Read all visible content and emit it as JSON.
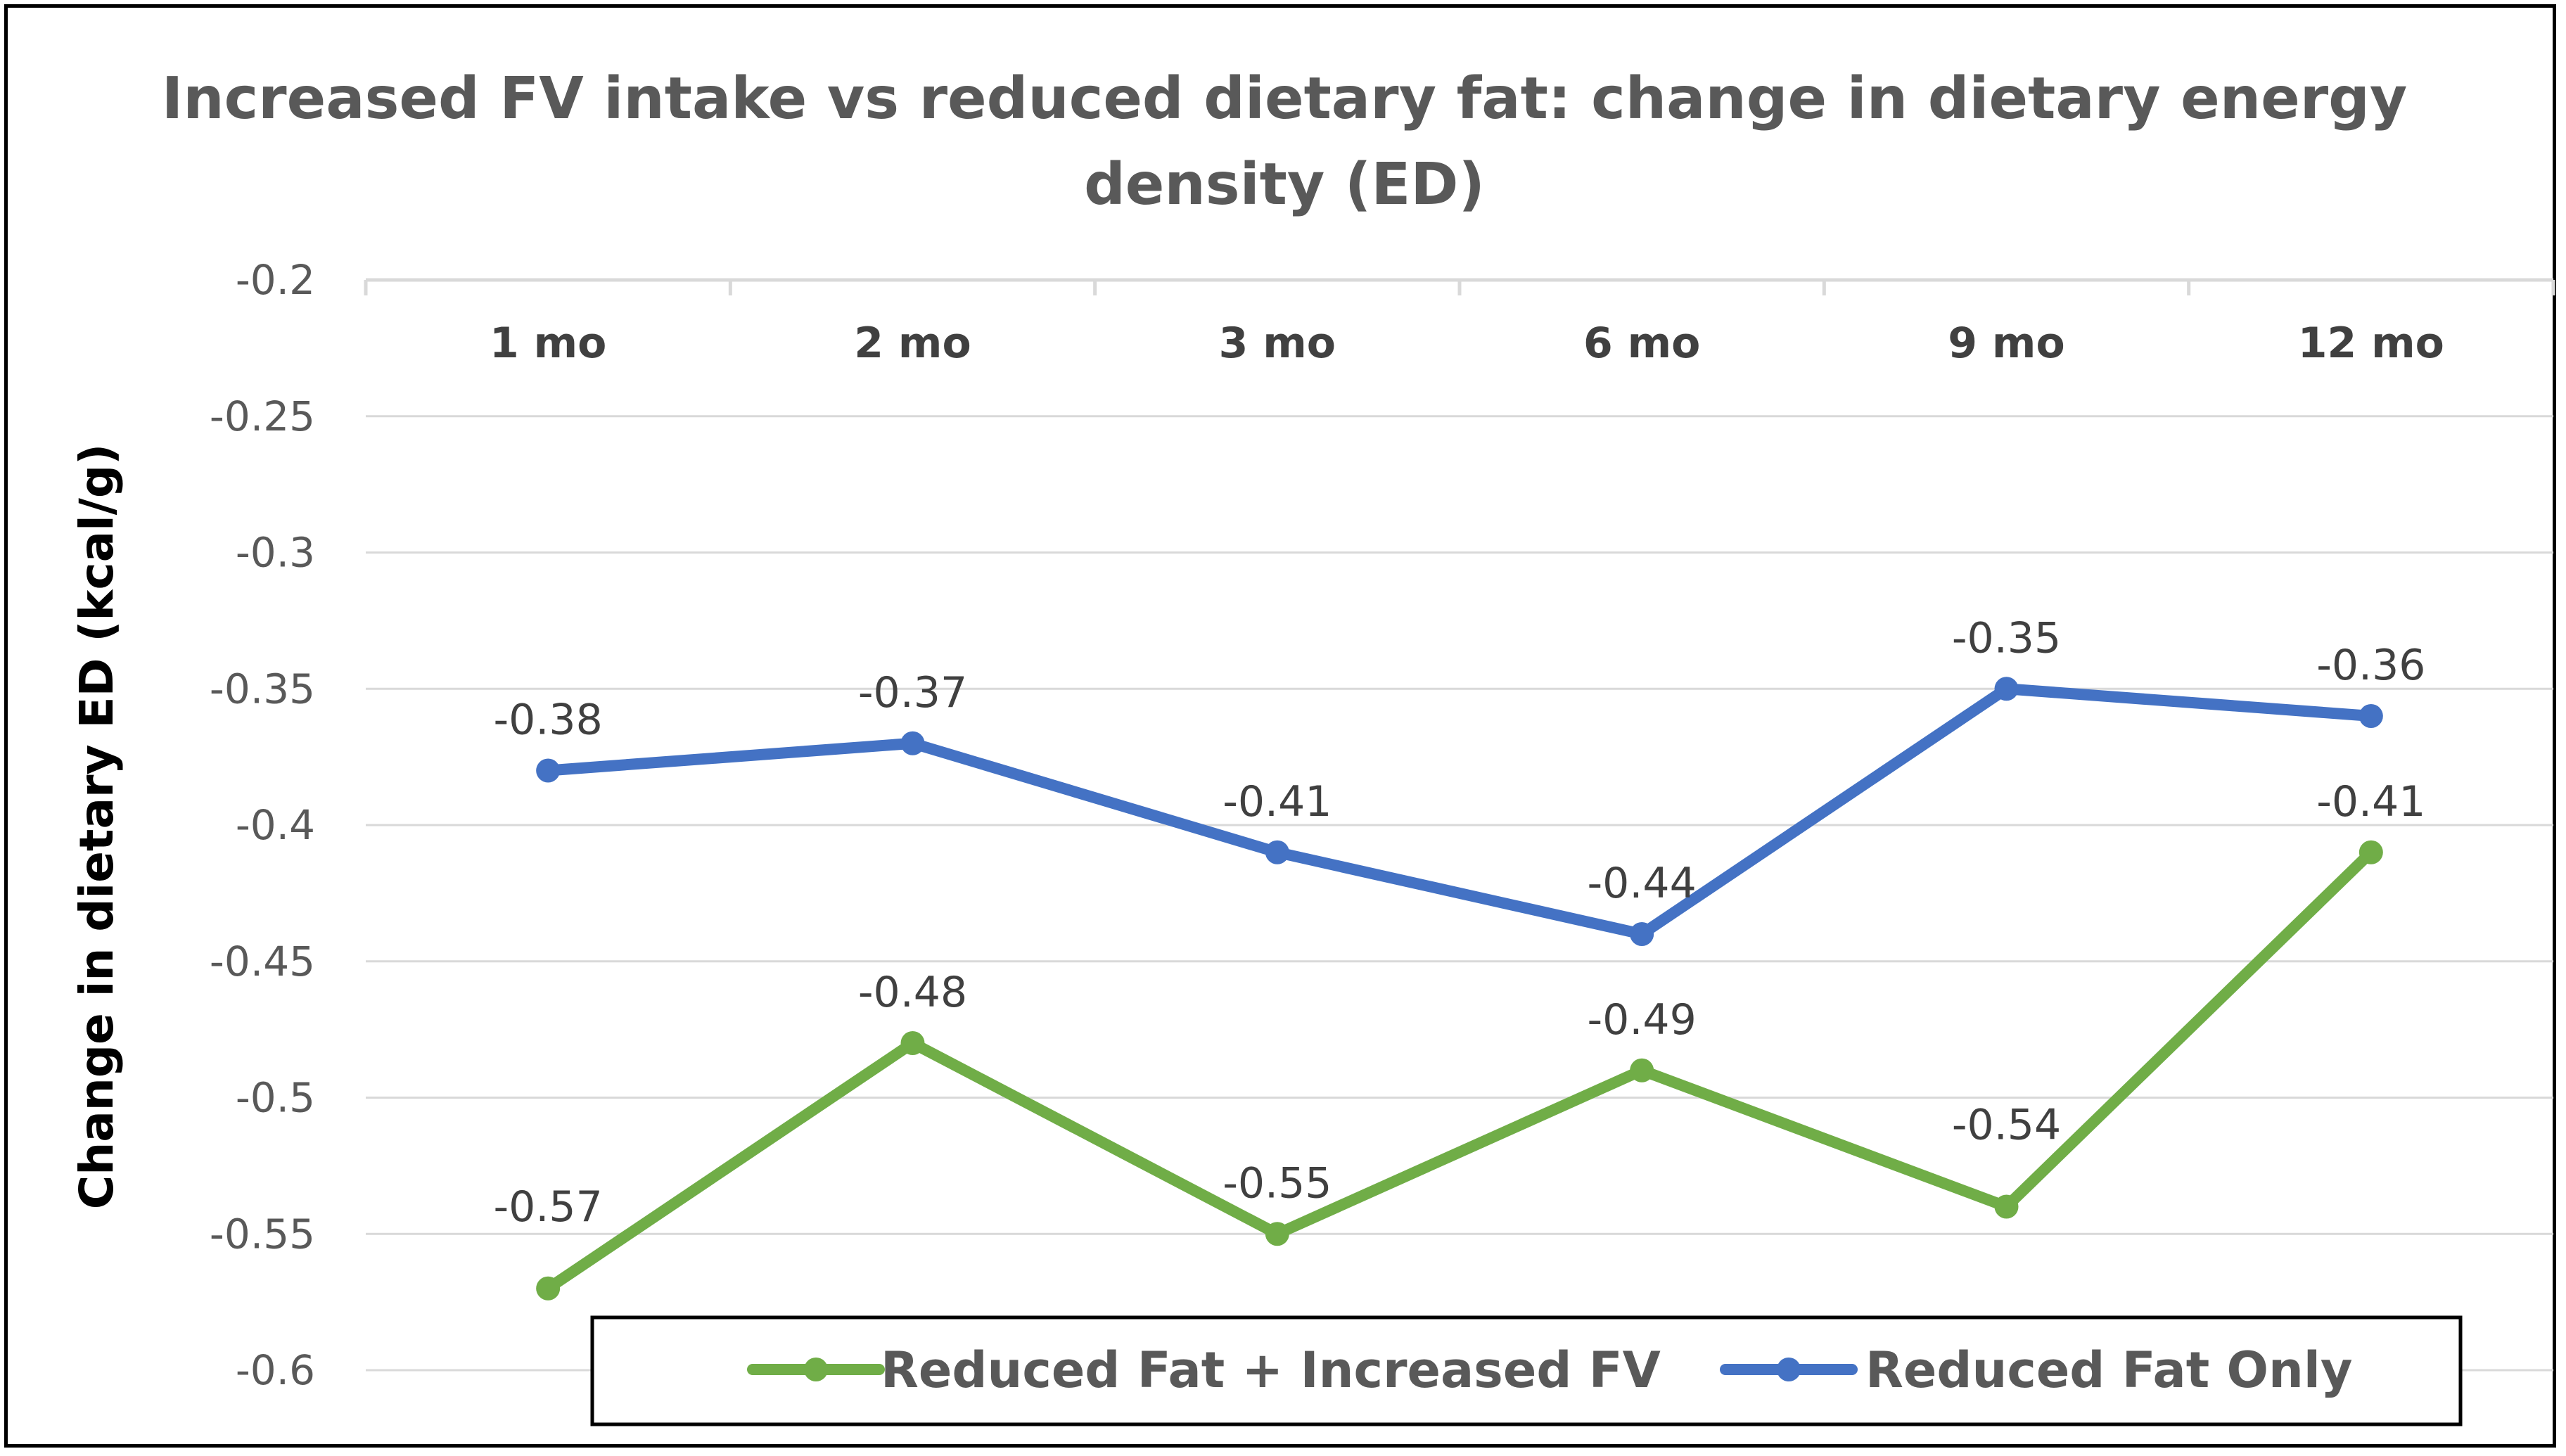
{
  "chart_data": {
    "type": "line",
    "title": "Increased FV intake vs reduced dietary fat: change in dietary energy density (ED)",
    "title_lines": [
      "Increased FV intake vs reduced dietary fat: change in dietary energy",
      "density (ED)"
    ],
    "xlabel": "",
    "ylabel": "Change in dietary ED (kcal/g)",
    "categories": [
      "1 mo",
      "2 mo",
      "3 mo",
      "6 mo",
      "9 mo",
      "12 mo"
    ],
    "ylim": [
      -0.6,
      -0.2
    ],
    "yticks": [
      -0.2,
      -0.25,
      -0.3,
      -0.35,
      -0.4,
      -0.45,
      -0.5,
      -0.55,
      -0.6
    ],
    "ytick_labels": [
      "-0.2",
      "-0.25",
      "-0.3",
      "-0.35",
      "-0.4",
      "-0.45",
      "-0.5",
      "-0.55",
      "-0.6"
    ],
    "grid": true,
    "legend_position": "bottom",
    "series": [
      {
        "name": "Reduced Fat + Increased FV",
        "color": "#70ad47",
        "values": [
          -0.57,
          -0.48,
          -0.55,
          -0.49,
          -0.54,
          -0.41
        ],
        "labels": [
          "-0.57",
          "-0.48",
          "-0.55",
          "-0.49",
          "-0.54",
          "-0.41"
        ]
      },
      {
        "name": "Reduced Fat Only",
        "color": "#4472c4",
        "values": [
          -0.38,
          -0.37,
          -0.41,
          -0.44,
          -0.35,
          -0.36
        ],
        "labels": [
          "-0.38",
          "-0.37",
          "-0.41",
          "-0.44",
          "-0.35",
          "-0.36"
        ]
      }
    ]
  }
}
